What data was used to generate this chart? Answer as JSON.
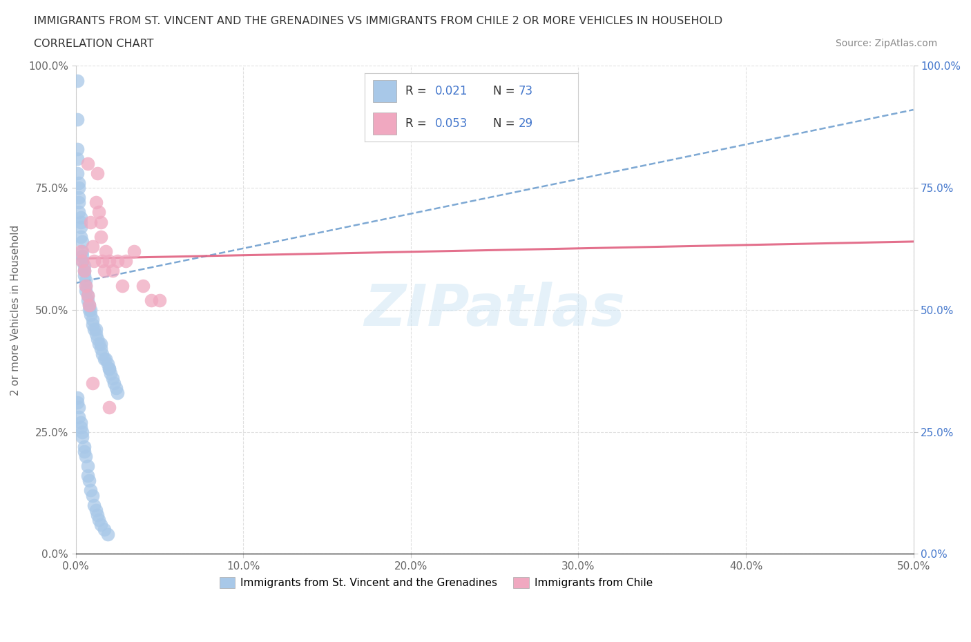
{
  "title_line1": "IMMIGRANTS FROM ST. VINCENT AND THE GRENADINES VS IMMIGRANTS FROM CHILE 2 OR MORE VEHICLES IN HOUSEHOLD",
  "title_line2": "CORRELATION CHART",
  "source_text": "Source: ZipAtlas.com",
  "ylabel": "2 or more Vehicles in Household",
  "xlim": [
    0.0,
    0.5
  ],
  "ylim": [
    0.0,
    1.0
  ],
  "xtick_labels": [
    "0.0%",
    "10.0%",
    "20.0%",
    "30.0%",
    "40.0%",
    "50.0%"
  ],
  "xtick_vals": [
    0.0,
    0.1,
    0.2,
    0.3,
    0.4,
    0.5
  ],
  "ytick_labels": [
    "0.0%",
    "25.0%",
    "50.0%",
    "75.0%",
    "100.0%"
  ],
  "ytick_vals": [
    0.0,
    0.25,
    0.5,
    0.75,
    1.0
  ],
  "color_blue": "#a8c8e8",
  "color_pink": "#f0a8c0",
  "color_blue_line": "#6699cc",
  "color_pink_line": "#e06080",
  "color_blue_text": "#4477cc",
  "watermark_text": "ZIPatlas",
  "legend_label1": "Immigrants from St. Vincent and the Grenadines",
  "legend_label2": "Immigrants from Chile",
  "blue_scatter_x": [
    0.001,
    0.001,
    0.001,
    0.001,
    0.001,
    0.002,
    0.002,
    0.002,
    0.002,
    0.002,
    0.003,
    0.003,
    0.003,
    0.003,
    0.004,
    0.004,
    0.004,
    0.004,
    0.005,
    0.005,
    0.005,
    0.006,
    0.006,
    0.006,
    0.007,
    0.007,
    0.008,
    0.008,
    0.009,
    0.009,
    0.01,
    0.01,
    0.011,
    0.012,
    0.012,
    0.013,
    0.014,
    0.015,
    0.015,
    0.016,
    0.017,
    0.018,
    0.019,
    0.02,
    0.02,
    0.021,
    0.022,
    0.023,
    0.024,
    0.025,
    0.001,
    0.001,
    0.002,
    0.002,
    0.003,
    0.003,
    0.004,
    0.004,
    0.005,
    0.005,
    0.006,
    0.007,
    0.007,
    0.008,
    0.009,
    0.01,
    0.011,
    0.012,
    0.013,
    0.014,
    0.015,
    0.017,
    0.019
  ],
  "blue_scatter_y": [
    0.97,
    0.89,
    0.83,
    0.81,
    0.78,
    0.76,
    0.75,
    0.73,
    0.72,
    0.7,
    0.69,
    0.68,
    0.67,
    0.65,
    0.64,
    0.62,
    0.61,
    0.6,
    0.59,
    0.58,
    0.57,
    0.56,
    0.55,
    0.54,
    0.53,
    0.52,
    0.51,
    0.5,
    0.5,
    0.49,
    0.48,
    0.47,
    0.46,
    0.46,
    0.45,
    0.44,
    0.43,
    0.43,
    0.42,
    0.41,
    0.4,
    0.4,
    0.39,
    0.38,
    0.38,
    0.37,
    0.36,
    0.35,
    0.34,
    0.33,
    0.32,
    0.31,
    0.3,
    0.28,
    0.27,
    0.26,
    0.25,
    0.24,
    0.22,
    0.21,
    0.2,
    0.18,
    0.16,
    0.15,
    0.13,
    0.12,
    0.1,
    0.09,
    0.08,
    0.07,
    0.06,
    0.05,
    0.04
  ],
  "pink_scatter_x": [
    0.003,
    0.004,
    0.005,
    0.006,
    0.007,
    0.008,
    0.009,
    0.01,
    0.011,
    0.012,
    0.013,
    0.014,
    0.015,
    0.016,
    0.017,
    0.018,
    0.02,
    0.022,
    0.025,
    0.028,
    0.03,
    0.035,
    0.04,
    0.045,
    0.05,
    0.007,
    0.01,
    0.015,
    0.02
  ],
  "pink_scatter_y": [
    0.62,
    0.6,
    0.58,
    0.55,
    0.53,
    0.51,
    0.68,
    0.63,
    0.6,
    0.72,
    0.78,
    0.7,
    0.65,
    0.6,
    0.58,
    0.62,
    0.6,
    0.58,
    0.6,
    0.55,
    0.6,
    0.62,
    0.55,
    0.52,
    0.52,
    0.8,
    0.35,
    0.68,
    0.3
  ],
  "blue_trend_x": [
    0.0,
    0.5
  ],
  "blue_trend_y": [
    0.555,
    0.91
  ],
  "pink_trend_x": [
    0.0,
    0.5
  ],
  "pink_trend_y": [
    0.605,
    0.64
  ]
}
